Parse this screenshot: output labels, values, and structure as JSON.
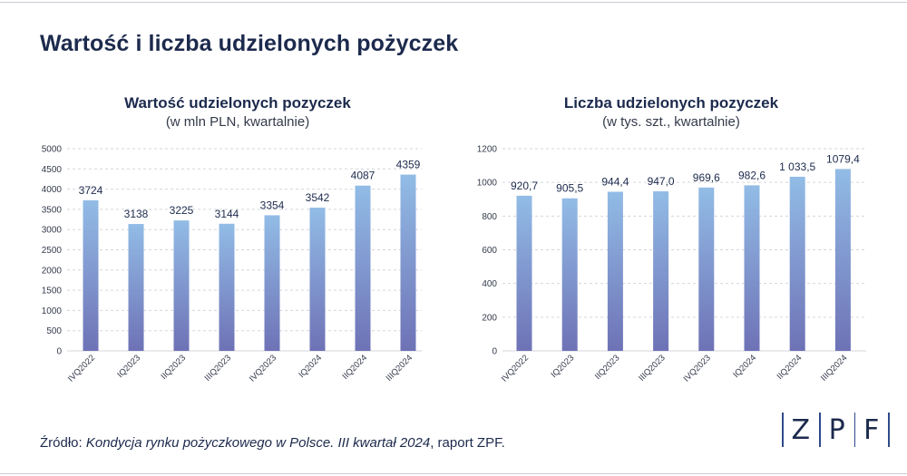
{
  "page_title": "Wartość i liczba udzielonych pożyczek",
  "source": {
    "prefix": "Źródło: ",
    "title": "Kondycja rynku pożyczkowego w Polsce. III kwartał 2024",
    "suffix": ", raport ZPF."
  },
  "logo": {
    "letters": [
      "Z",
      "P",
      "F"
    ]
  },
  "colors": {
    "bar_top": "#92bce6",
    "bar_bottom": "#6e72b6",
    "grid": "#d4d6dc",
    "text": "#1c2a4d"
  },
  "chart_data": [
    {
      "type": "bar",
      "title": "Wartość udzielonych pozyczek",
      "subtitle": "(w mln PLN, kwartalnie)",
      "xlabel": "",
      "ylabel": "",
      "categories": [
        "IVQ2022",
        "IQ2023",
        "IIQ2023",
        "IIIQ2023",
        "IVQ2023",
        "IQ2024",
        "IIQ2024",
        "IIIQ2024"
      ],
      "values": [
        3724,
        3138,
        3225,
        3144,
        3354,
        3542,
        4087,
        4359
      ],
      "value_labels": [
        "3724",
        "3138",
        "3225",
        "3144",
        "3354",
        "3542",
        "4087",
        "4359"
      ],
      "ylim": [
        0,
        5000
      ],
      "yticks": [
        0,
        500,
        1000,
        1500,
        2000,
        2500,
        3000,
        3500,
        4000,
        4500,
        5000
      ],
      "ytick_labels": [
        "0",
        "500",
        "1000",
        "1500",
        "2000",
        "2500",
        "3000",
        "3500",
        "4000",
        "4500",
        "5000"
      ],
      "grid": true
    },
    {
      "type": "bar",
      "title": "Liczba udzielonych pozyczek",
      "subtitle": "(w tys. szt., kwartalnie)",
      "xlabel": "",
      "ylabel": "",
      "categories": [
        "IVQ2022",
        "IQ2023",
        "IIQ2023",
        "IIIQ2023",
        "IVQ2023",
        "IQ2024",
        "IIQ2024",
        "IIIQ2024"
      ],
      "values": [
        920.7,
        905.5,
        944.4,
        947.0,
        969.6,
        982.6,
        1033.5,
        1079.4
      ],
      "value_labels": [
        "920,7",
        "905,5",
        "944,4",
        "947,0",
        "969,6",
        "982,6",
        "1 033,5",
        "1079,4"
      ],
      "ylim": [
        0,
        1200
      ],
      "yticks": [
        0,
        200,
        400,
        600,
        800,
        1000,
        1200
      ],
      "ytick_labels": [
        "0",
        "200",
        "400",
        "600",
        "800",
        "1000",
        "1200"
      ],
      "grid": true
    }
  ]
}
